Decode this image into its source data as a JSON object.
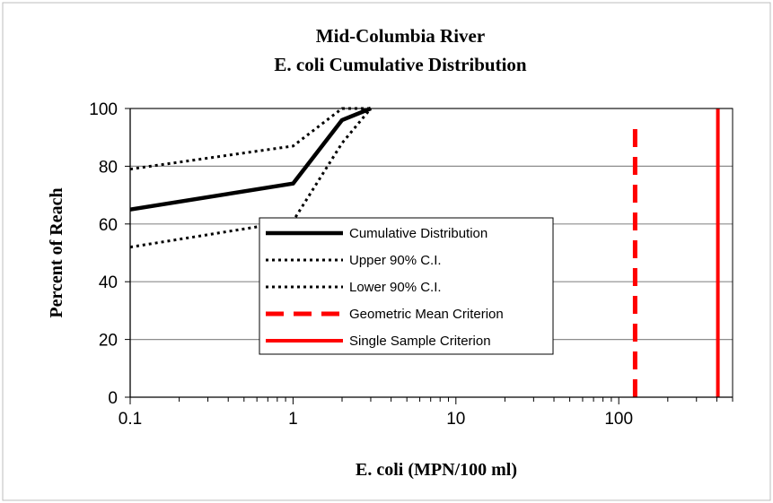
{
  "chart_data": {
    "type": "line",
    "title": "Mid-Columbia River",
    "subtitle": "E. coli Cumulative Distribution",
    "xlabel": "E. coli (MPN/100 ml)",
    "ylabel": "Percent of Reach",
    "x_scale": "log",
    "xlim": [
      0.1,
      500
    ],
    "ylim": [
      0,
      100
    ],
    "x_ticks": [
      0.1,
      1,
      10,
      100
    ],
    "x_tick_labels": [
      "0.1",
      "1",
      "10",
      "100"
    ],
    "y_ticks": [
      0,
      20,
      40,
      60,
      80,
      100
    ],
    "y_tick_labels": [
      "0",
      "20",
      "40",
      "60",
      "80",
      "100"
    ],
    "grid": "horizontal",
    "legend_position": "center",
    "series": [
      {
        "name": "Cumulative Distribution",
        "style": "solid",
        "color": "#000000",
        "x": [
          0.1,
          1,
          2,
          3
        ],
        "y": [
          65,
          74,
          96,
          100
        ]
      },
      {
        "name": "Upper 90% C.I.",
        "style": "dotted",
        "color": "#000000",
        "x": [
          0.1,
          1,
          2,
          3
        ],
        "y": [
          79,
          87,
          100,
          100
        ]
      },
      {
        "name": "Lower 90% C.I.",
        "style": "dotted",
        "color": "#000000",
        "x": [
          0.1,
          1,
          2,
          3
        ],
        "y": [
          52,
          61,
          88,
          100
        ]
      },
      {
        "name": "Geometric Mean Criterion",
        "style": "dashed",
        "color": "#ff0000",
        "x": [
          126,
          126
        ],
        "y": [
          0,
          94
        ]
      },
      {
        "name": "Single Sample Criterion",
        "style": "solid",
        "color": "#ff0000",
        "x": [
          406,
          406
        ],
        "y": [
          0,
          100
        ]
      }
    ]
  }
}
